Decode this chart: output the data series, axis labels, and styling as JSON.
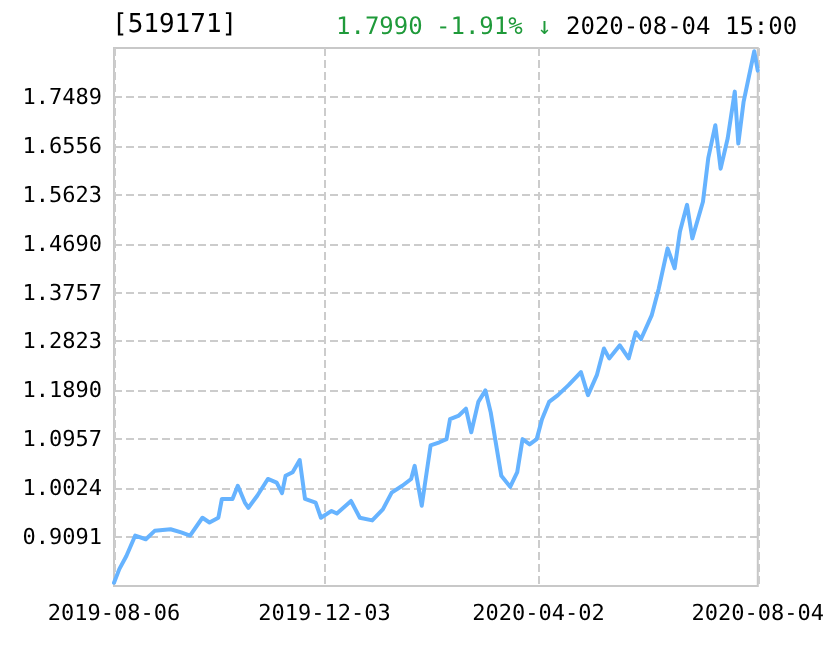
{
  "chart_data": {
    "type": "line",
    "title": "[519171]",
    "annotations": [
      "1.7990",
      "-1.91% ↓",
      "2020-08-04 15:00"
    ],
    "x": [
      "2019-08-06",
      "2019-08-09",
      "2019-08-13",
      "2019-08-18",
      "2019-08-24",
      "2019-08-29",
      "2019-09-07",
      "2019-09-13",
      "2019-09-18",
      "2019-09-25",
      "2019-09-29",
      "2019-10-04",
      "2019-10-06",
      "2019-10-12",
      "2019-10-15",
      "2019-10-19",
      "2019-10-21",
      "2019-10-26",
      "2019-11-01",
      "2019-11-06",
      "2019-11-09",
      "2019-11-11",
      "2019-11-15",
      "2019-11-19",
      "2019-11-22",
      "2019-11-28",
      "2019-12-01",
      "2019-12-07",
      "2019-12-10",
      "2019-12-18",
      "2019-12-23",
      "2019-12-30",
      "2020-01-05",
      "2020-01-10",
      "2020-01-16",
      "2020-01-21",
      "2020-01-23",
      "2020-01-27",
      "2020-02-01",
      "2020-02-06",
      "2020-02-10",
      "2020-02-12",
      "2020-02-17",
      "2020-02-21",
      "2020-02-24",
      "2020-02-28",
      "2020-03-03",
      "2020-03-06",
      "2020-03-12",
      "2020-03-17",
      "2020-03-21",
      "2020-03-24",
      "2020-03-28",
      "2020-04-01",
      "2020-04-04",
      "2020-04-08",
      "2020-04-13",
      "2020-04-19",
      "2020-04-26",
      "2020-04-30",
      "2020-05-05",
      "2020-05-09",
      "2020-05-12",
      "2020-05-18",
      "2020-05-23",
      "2020-05-27",
      "2020-05-30",
      "2020-06-05",
      "2020-06-09",
      "2020-06-14",
      "2020-06-18",
      "2020-06-21",
      "2020-06-25",
      "2020-06-28",
      "2020-07-04",
      "2020-07-07",
      "2020-07-11",
      "2020-07-14",
      "2020-07-18",
      "2020-07-22",
      "2020-07-24",
      "2020-07-27",
      "2020-08-02",
      "2020-08-04"
    ],
    "series": [
      {
        "color": "#66b3ff",
        "values": [
          0.822,
          0.848,
          0.873,
          0.912,
          0.905,
          0.921,
          0.924,
          0.918,
          0.912,
          0.946,
          0.937,
          0.946,
          0.982,
          0.982,
          1.007,
          0.975,
          0.965,
          0.988,
          1.02,
          1.013,
          0.993,
          1.026,
          1.033,
          1.056,
          0.982,
          0.975,
          0.946,
          0.959,
          0.954,
          0.978,
          0.946,
          0.941,
          0.962,
          0.994,
          1.007,
          1.02,
          1.045,
          0.969,
          1.084,
          1.09,
          1.096,
          1.134,
          1.141,
          1.154,
          1.109,
          1.167,
          1.189,
          1.147,
          1.026,
          1.005,
          1.033,
          1.096,
          1.086,
          1.096,
          1.134,
          1.167,
          1.18,
          1.199,
          1.224,
          1.18,
          1.218,
          1.269,
          1.25,
          1.275,
          1.25,
          1.3,
          1.287,
          1.332,
          1.383,
          1.46,
          1.422,
          1.492,
          1.543,
          1.479,
          1.549,
          1.632,
          1.695,
          1.612,
          1.67,
          1.759,
          1.66,
          1.74,
          1.836,
          1.799
        ]
      }
    ],
    "xlim": [
      "2019-08-06",
      "2020-08-04"
    ],
    "xticks": [
      {
        "value": "2019-08-06",
        "label": "2019-08-06"
      },
      {
        "value": "2019-12-03",
        "label": "2019-12-03"
      },
      {
        "value": "2020-04-02",
        "label": "2020-04-02"
      },
      {
        "value": "2020-08-04",
        "label": "2020-08-04"
      }
    ],
    "ylim": [
      0.8158,
      1.8422
    ],
    "yticks": [
      0.9091,
      1.0024,
      1.0957,
      {
        "value": 1.189,
        "label": "1.1890"
      },
      1.2823,
      1.3757,
      {
        "value": 1.469,
        "label": "1.4690"
      },
      1.5623,
      1.6556,
      1.7489
    ],
    "grid": true,
    "marker": "none",
    "line_style": "solid"
  }
}
